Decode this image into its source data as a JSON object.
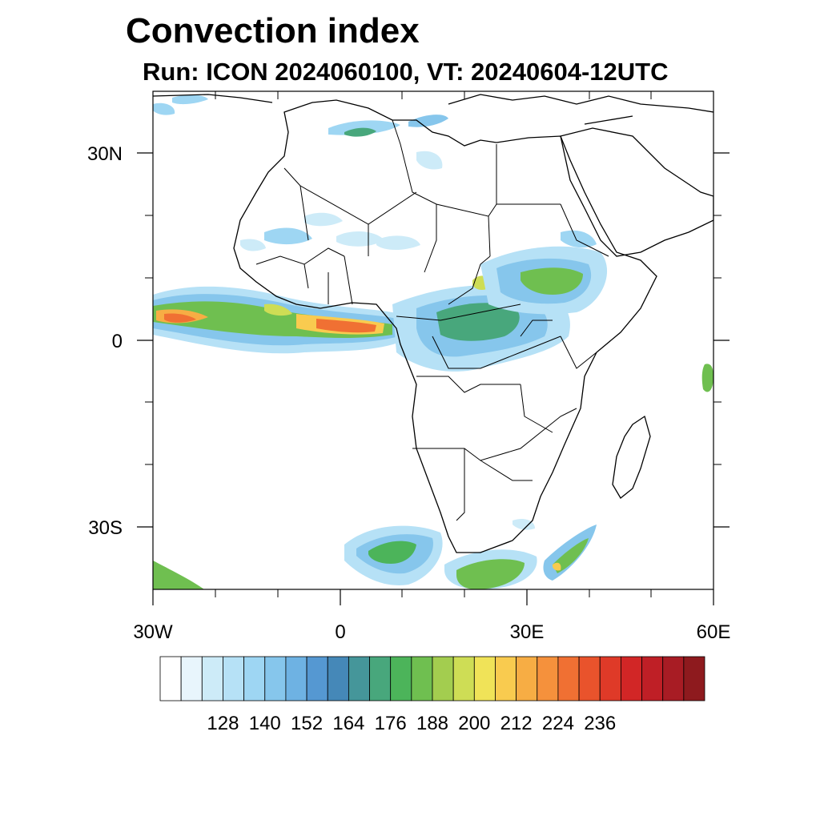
{
  "map": {
    "title": "Convection index",
    "subtitle": "Run: ICON 2024060100,  VT: 20240604-12UTC",
    "lat_labels": [
      "30N",
      "0",
      "30S"
    ],
    "lon_labels": [
      "30W",
      "0",
      "30E",
      "60E"
    ],
    "extent": {
      "lon_min": -30,
      "lon_max": 60,
      "lat_min": -40,
      "lat_max": 40
    }
  },
  "colorbar": {
    "colors": [
      "#ffffff",
      "#e8f5fc",
      "#cdebf8",
      "#b6e1f6",
      "#9ed6f3",
      "#86c6ec",
      "#6eb2e3",
      "#5598d2",
      "#4588b8",
      "#45969a",
      "#48a77c",
      "#4cb45a",
      "#6fbf50",
      "#a3cd4f",
      "#cedd55",
      "#f0e358",
      "#f9cb4f",
      "#f7ad44",
      "#f5913c",
      "#f07033",
      "#e9532c",
      "#df3a28",
      "#d22626",
      "#bf1f26",
      "#a81c24",
      "#8e1a1e"
    ],
    "labels": [
      "128",
      "140",
      "152",
      "164",
      "176",
      "188",
      "200",
      "212",
      "224",
      "236"
    ]
  }
}
